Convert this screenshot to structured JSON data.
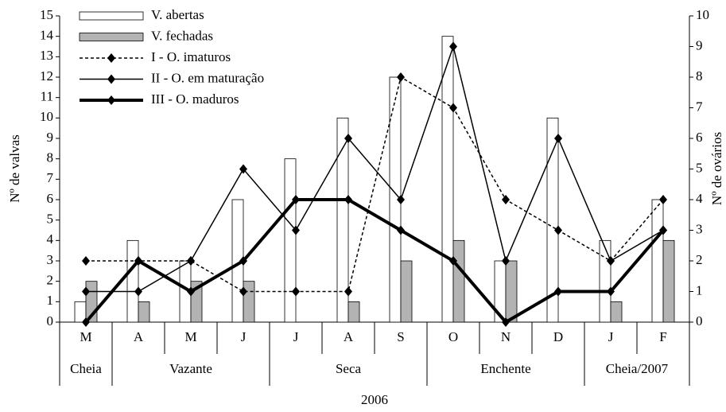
{
  "chart_data": {
    "type": "bar-line",
    "categories": [
      "M",
      "A",
      "M",
      "J",
      "J",
      "A",
      "S",
      "O",
      "N",
      "D",
      "J",
      "F"
    ],
    "groups": [
      {
        "label": "Cheia",
        "span": 1
      },
      {
        "label": "Vazante",
        "span": 3
      },
      {
        "label": "Seca",
        "span": 3
      },
      {
        "label": "Enchente",
        "span": 3
      },
      {
        "label": "Cheia/2007",
        "span": 2
      }
    ],
    "xlabel": "2006",
    "ylabel": "Nº de valvas",
    "y2label": "Nº de ovários",
    "ylim": [
      0,
      15
    ],
    "yticks": [
      0,
      1,
      2,
      3,
      4,
      5,
      6,
      7,
      8,
      9,
      10,
      11,
      12,
      13,
      14,
      15
    ],
    "y2lim": [
      0,
      10
    ],
    "y2ticks": [
      0,
      1,
      2,
      3,
      4,
      5,
      6,
      7,
      8,
      9,
      10
    ],
    "series": [
      {
        "name": "V. abertas",
        "kind": "bar",
        "color": "#ffffff",
        "values": [
          1,
          4,
          3,
          6,
          8,
          10,
          12,
          14,
          3,
          10,
          4,
          6
        ]
      },
      {
        "name": "V. fechadas",
        "kind": "bar",
        "color": "#b3b3b3",
        "values": [
          2,
          1,
          2,
          2,
          0,
          1,
          3,
          4,
          3,
          0,
          1,
          4
        ]
      },
      {
        "name": "I - O. imaturos",
        "kind": "line",
        "axis": "y2",
        "color": "#000000",
        "style": "dashed",
        "width": 1.5,
        "values": [
          2,
          2,
          2,
          1,
          1,
          1,
          8,
          7,
          4,
          3,
          2,
          4
        ]
      },
      {
        "name": "II - O. em maturação",
        "kind": "line",
        "axis": "y2",
        "color": "#000000",
        "style": "solid",
        "width": 1.5,
        "values": [
          1,
          1,
          2,
          5,
          3,
          6,
          4,
          9,
          2,
          6,
          2,
          3
        ]
      },
      {
        "name": "III - O. maduros",
        "kind": "line",
        "axis": "y2",
        "color": "#000000",
        "style": "solid",
        "width": 4,
        "values": [
          0,
          2,
          1,
          2,
          4,
          4,
          3,
          2,
          0,
          1,
          1,
          3
        ]
      }
    ]
  }
}
